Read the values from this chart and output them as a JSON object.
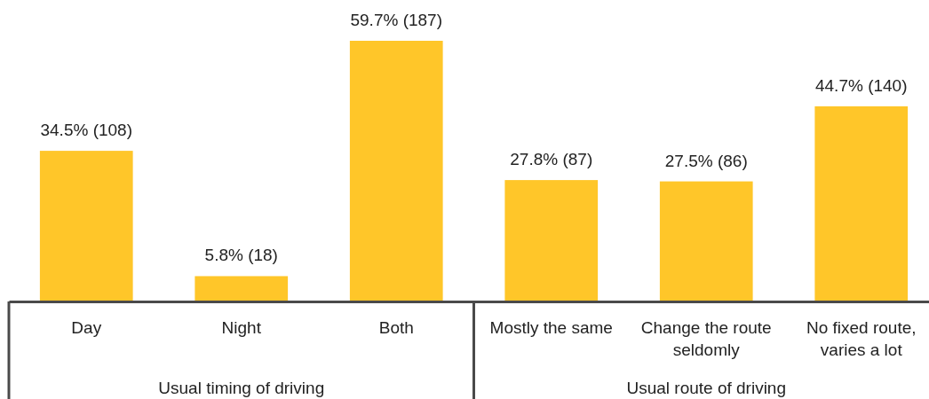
{
  "chart_data": {
    "type": "bar",
    "categories": [
      "Day",
      "Night",
      "Both",
      "Mostly the same",
      "Change the route seldomly",
      "No fixed route, varies a lot"
    ],
    "values": [
      34.5,
      5.8,
      59.7,
      27.8,
      27.5,
      44.7
    ],
    "value_labels": [
      "34.5% (108)",
      "5.8% (18)",
      "59.7% (187)",
      "27.8% (87)",
      "27.5% (86)",
      "44.7% (140)"
    ],
    "color": "#ffc629",
    "annotations": [
      "Usual timing of driving",
      "Usual route of driving"
    ]
  }
}
